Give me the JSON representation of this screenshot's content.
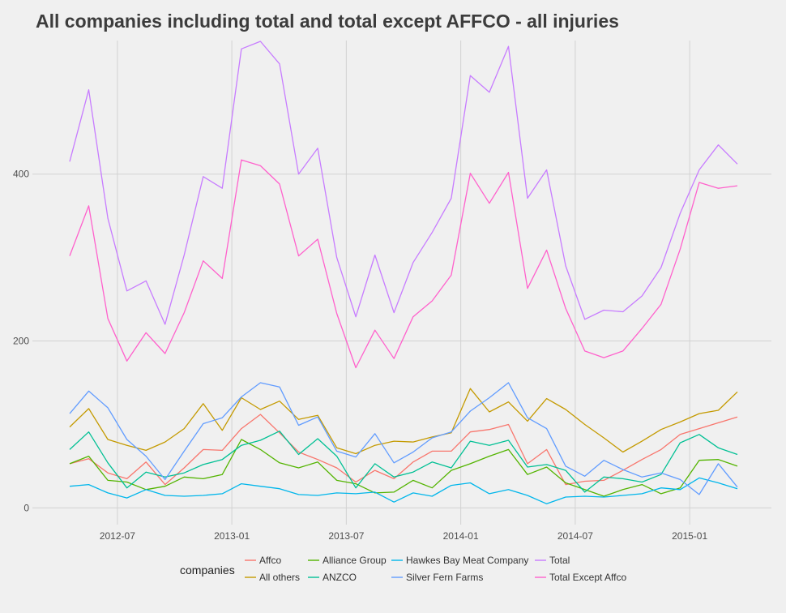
{
  "chart_data": {
    "type": "line",
    "title": "All companies including total and total except AFFCO - all injuries",
    "xlabel": "",
    "ylabel": "",
    "x": [
      "2012-04",
      "2012-05",
      "2012-06",
      "2012-07",
      "2012-08",
      "2012-09",
      "2012-10",
      "2012-11",
      "2012-12",
      "2013-01",
      "2013-02",
      "2013-03",
      "2013-04",
      "2013-05",
      "2013-06",
      "2013-07",
      "2013-08",
      "2013-09",
      "2013-10",
      "2013-11",
      "2013-12",
      "2014-01",
      "2014-02",
      "2014-03",
      "2014-04",
      "2014-05",
      "2014-06",
      "2014-07",
      "2014-08",
      "2014-09",
      "2014-10",
      "2014-11",
      "2014-12",
      "2015-01",
      "2015-02",
      "2015-03"
    ],
    "x_ticks": [
      "2012-07",
      "2013-01",
      "2013-07",
      "2014-01",
      "2014-07",
      "2015-01"
    ],
    "y_ticks": [
      0,
      200,
      400
    ],
    "ylim": [
      -20,
      560
    ],
    "grid": true,
    "legend_title": "companies",
    "legend_position": "bottom",
    "series": [
      {
        "name": "Affco",
        "color": "#F8766D",
        "values": [
          53,
          59,
          42,
          35,
          55,
          28,
          48,
          70,
          69,
          95,
          112,
          90,
          67,
          58,
          48,
          31,
          45,
          35,
          55,
          68,
          68,
          91,
          94,
          100,
          53,
          70,
          28,
          32,
          33,
          45,
          58,
          70,
          88,
          95,
          102,
          109
        ]
      },
      {
        "name": "All others",
        "color": "#C49A00",
        "values": [
          97,
          119,
          82,
          75,
          69,
          79,
          95,
          125,
          93,
          132,
          118,
          128,
          106,
          111,
          72,
          65,
          75,
          80,
          79,
          85,
          90,
          143,
          115,
          127,
          104,
          131,
          118,
          100,
          84,
          67,
          80,
          94,
          103,
          113,
          117,
          139
        ]
      },
      {
        "name": "Alliance Group",
        "color": "#53B400",
        "values": [
          53,
          62,
          33,
          31,
          22,
          26,
          37,
          35,
          40,
          82,
          70,
          54,
          48,
          55,
          33,
          29,
          18,
          19,
          33,
          24,
          45,
          53,
          62,
          70,
          40,
          49,
          30,
          22,
          14,
          22,
          28,
          17,
          24,
          57,
          58,
          50
        ]
      },
      {
        "name": "ANZCO",
        "color": "#00C094",
        "values": [
          70,
          91,
          54,
          24,
          43,
          37,
          42,
          52,
          58,
          75,
          81,
          92,
          64,
          83,
          62,
          24,
          53,
          37,
          43,
          55,
          48,
          80,
          75,
          81,
          49,
          52,
          45,
          19,
          37,
          35,
          31,
          40,
          78,
          88,
          72,
          64
        ]
      },
      {
        "name": "Hawkes Bay Meat Company",
        "color": "#00B6EB",
        "values": [
          26,
          28,
          18,
          12,
          22,
          15,
          14,
          15,
          17,
          29,
          26,
          23,
          16,
          15,
          18,
          17,
          19,
          7,
          18,
          14,
          27,
          30,
          17,
          22,
          15,
          5,
          13,
          14,
          13,
          15,
          17,
          24,
          22,
          36,
          30,
          23
        ]
      },
      {
        "name": "Silver Fern Farms",
        "color": "#619CFF",
        "values": [
          113,
          140,
          120,
          82,
          62,
          34,
          68,
          101,
          108,
          133,
          150,
          145,
          99,
          109,
          68,
          61,
          89,
          54,
          67,
          84,
          91,
          116,
          132,
          150,
          108,
          95,
          50,
          38,
          57,
          46,
          37,
          42,
          34,
          16,
          53,
          25
        ]
      },
      {
        "name": "Total",
        "color": "#C77CFF",
        "values": [
          415,
          501,
          347,
          260,
          272,
          220,
          303,
          397,
          383,
          550,
          559,
          532,
          400,
          431,
          300,
          229,
          303,
          234,
          294,
          330,
          371,
          518,
          498,
          553,
          371,
          405,
          290,
          226,
          237,
          235,
          254,
          288,
          353,
          405,
          435,
          412
        ]
      },
      {
        "name": "Total Except Affco",
        "color": "#FF61CC",
        "values": [
          302,
          362,
          227,
          176,
          210,
          185,
          234,
          296,
          275,
          417,
          410,
          388,
          302,
          322,
          233,
          168,
          213,
          179,
          229,
          248,
          279,
          401,
          365,
          402,
          263,
          309,
          239,
          188,
          180,
          188,
          215,
          244,
          310,
          390,
          383,
          386
        ]
      }
    ]
  }
}
